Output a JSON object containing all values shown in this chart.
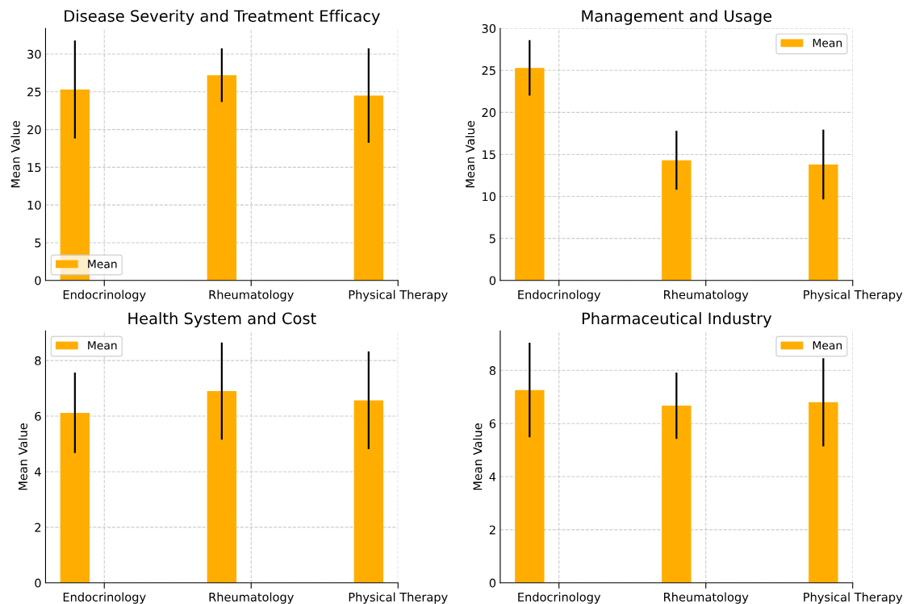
{
  "chart_data": [
    {
      "type": "bar",
      "title": "Disease Severity and Treatment Efficacy",
      "ylabel": "Mean Value",
      "categories": [
        "Endocrinology",
        "Rheumatology",
        "Physical Therapy"
      ],
      "series": [
        {
          "name": "Mean",
          "color": "#ffae00",
          "values": [
            25.3,
            27.2,
            24.5
          ],
          "errors": [
            6.5,
            3.55,
            6.25
          ]
        }
      ],
      "ylim": [
        0,
        33.4
      ],
      "yticks": [
        0,
        5,
        10,
        15,
        20,
        25,
        30
      ],
      "grid": true,
      "legend": "bottom left"
    },
    {
      "type": "bar",
      "title": "Management and Usage",
      "ylabel": "Mean Value",
      "categories": [
        "Endocrinology",
        "Rheumatology",
        "Physical Therapy"
      ],
      "series": [
        {
          "name": "Mean",
          "color": "#ffae00",
          "values": [
            25.3,
            14.3,
            13.8
          ],
          "errors": [
            3.3,
            3.5,
            4.15
          ]
        }
      ],
      "ylim": [
        0,
        30
      ],
      "yticks": [
        0,
        5,
        10,
        15,
        20,
        25,
        30
      ],
      "grid": true,
      "legend": "top right"
    },
    {
      "type": "bar",
      "title": "Health System and Cost",
      "ylabel": "Mean Value",
      "categories": [
        "Endocrinology",
        "Rheumatology",
        "Physical Therapy"
      ],
      "series": [
        {
          "name": "Mean",
          "color": "#ffae00",
          "values": [
            6.12,
            6.9,
            6.57
          ],
          "errors": [
            1.45,
            1.75,
            1.76
          ]
        }
      ],
      "ylim": [
        0,
        9.07
      ],
      "yticks": [
        0,
        2,
        4,
        6,
        8
      ],
      "grid": true,
      "legend": "top left"
    },
    {
      "type": "bar",
      "title": "Pharmaceutical Industry",
      "ylabel": "Mean Value",
      "categories": [
        "Endocrinology",
        "Rheumatology",
        "Physical Therapy"
      ],
      "series": [
        {
          "name": "Mean",
          "color": "#ffae00",
          "values": [
            7.26,
            6.67,
            6.8
          ],
          "errors": [
            1.78,
            1.25,
            1.66
          ]
        }
      ],
      "ylim": [
        0,
        9.49
      ],
      "yticks": [
        0,
        2,
        4,
        6,
        8
      ],
      "grid": true,
      "legend": "top right"
    }
  ]
}
